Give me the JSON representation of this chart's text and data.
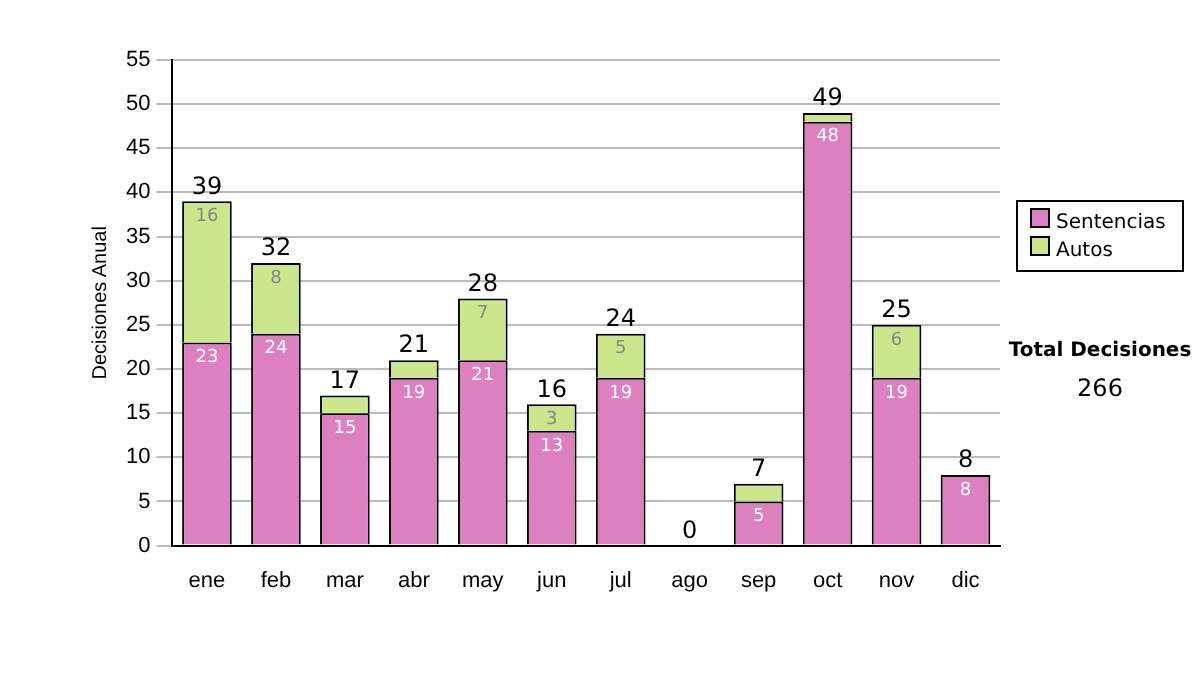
{
  "chart_data": {
    "type": "bar",
    "stacked": true,
    "ylabel": "Decisiones Anual",
    "categories": [
      "ene",
      "feb",
      "mar",
      "abr",
      "may",
      "jun",
      "jul",
      "ago",
      "sep",
      "oct",
      "nov",
      "dic"
    ],
    "series": [
      {
        "name": "Sentencias",
        "color": "#dd80c0",
        "values": [
          23,
          24,
          15,
          19,
          21,
          13,
          19,
          0,
          5,
          48,
          19,
          8
        ],
        "value_labels": [
          "23",
          "24",
          "15",
          "19",
          "21",
          "13",
          "19",
          null,
          "5",
          "48",
          "19",
          "8"
        ]
      },
      {
        "name": "Autos",
        "color": "#cce68c",
        "values": [
          16,
          8,
          2,
          2,
          7,
          3,
          5,
          0,
          2,
          1,
          6,
          0
        ],
        "value_labels": [
          "16",
          "8",
          null,
          null,
          "7",
          "3",
          "5",
          null,
          null,
          null,
          "6",
          null
        ]
      }
    ],
    "totals": [
      "39",
      "32",
      "17",
      "21",
      "28",
      "16",
      "24",
      "0",
      "7",
      "49",
      "25",
      "8"
    ],
    "ylim": [
      0,
      55
    ],
    "yticks": [
      0,
      5,
      10,
      15,
      20,
      25,
      30,
      35,
      40,
      45,
      50,
      55
    ],
    "grid": "y",
    "legend": "right",
    "annotations": [
      "Total Decisiones",
      "266"
    ]
  }
}
